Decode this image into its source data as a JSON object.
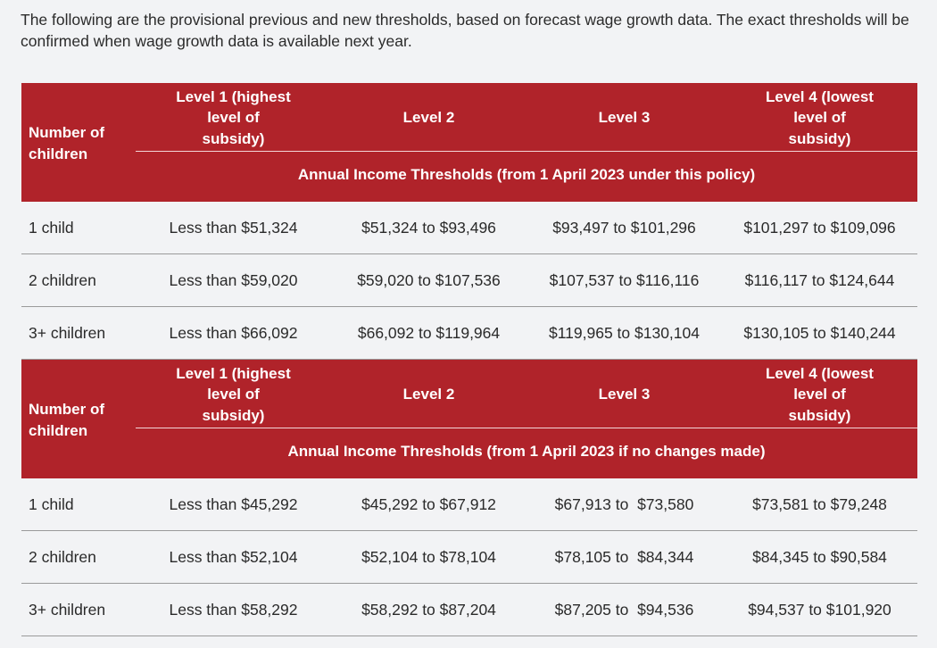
{
  "intro": "The following are the provisional previous and new thresholds, based on forecast wage growth data. The exact thresholds will be confirmed when wage growth data is available next year.",
  "colors": {
    "header_bg": "#b0232a",
    "page_bg": "#f2f3f5"
  },
  "tables": [
    {
      "row_header": "Number of children",
      "levels": [
        "Level 1 (highest level of subsidy)",
        "Level 2",
        "Level 3",
        "Level 4 (lowest level of subsidy)"
      ],
      "subheader": "Annual Income Thresholds (from 1 April 2023 under this policy)",
      "rows": [
        {
          "label": "1 child",
          "cells": [
            "Less than $51,324",
            "$51,324 to $93,496",
            "$93,497 to $101,296",
            "$101,297 to $109,096"
          ]
        },
        {
          "label": "2 children",
          "cells": [
            "Less than $59,020",
            "$59,020 to $107,536",
            "$107,537 to $116,116",
            "$116,117 to $124,644"
          ]
        },
        {
          "label": "3+ children",
          "cells": [
            "Less than $66,092",
            "$66,092 to $119,964",
            "$119,965 to $130,104",
            "$130,105 to $140,244"
          ]
        }
      ]
    },
    {
      "row_header": "Number of children",
      "levels": [
        "Level 1 (highest level of subsidy)",
        "Level 2",
        "Level 3",
        "Level 4 (lowest level of subsidy)"
      ],
      "subheader": "Annual Income Thresholds (from 1 April 2023 if no changes made)",
      "rows": [
        {
          "label": "1 child",
          "cells": [
            "Less than $45,292",
            "$45,292 to $67,912",
            "$67,913 to  $73,580",
            "$73,581 to $79,248"
          ]
        },
        {
          "label": "2 children",
          "cells": [
            "Less than $52,104",
            "$52,104 to $78,104",
            "$78,105 to  $84,344",
            "$84,345 to $90,584"
          ]
        },
        {
          "label": "3+ children",
          "cells": [
            "Less than $58,292",
            "$58,292 to $87,204",
            "$87,205 to  $94,536",
            "$94,537 to $101,920"
          ]
        }
      ]
    }
  ]
}
